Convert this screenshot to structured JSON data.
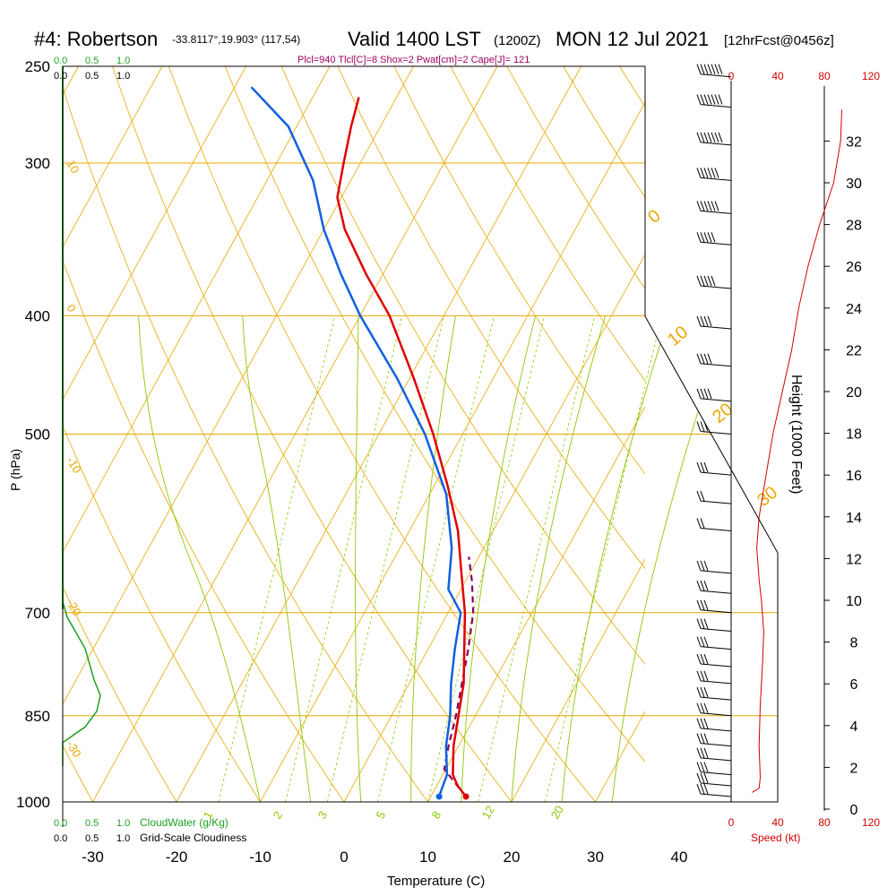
{
  "header": {
    "title": "#4: Robertson",
    "location": "-33.8117°,19.903° (117,54)",
    "valid": "Valid 1400 LST",
    "utc": "(1200Z)",
    "date": "MON 12 Jul 2021",
    "forecast": "[12hrFcst@0456z]",
    "params": "Plcl=940 Tlcl[C]=8 Shox=2 Pwat[cm]=2 Cape[J]= 121"
  },
  "labels": {
    "ylabel": "P (hPa)",
    "xlabel": "Temperature (C)",
    "height_label": "Height (1000 Feet)",
    "speed_label": "Speed (kt)",
    "cloudwater_label": "CloudWater (g/Kg)",
    "cloudiness_label": "Grid-Scale Cloudiness"
  },
  "cloud_scale": {
    "green_ticks": [
      "0.0",
      "0.5",
      "1.0"
    ],
    "black_ticks": [
      "0.0",
      "0.5",
      "1.0"
    ]
  },
  "colors": {
    "isotherm": "#e8a800",
    "adiabat": "#e8a800",
    "moist_adiabat": "#8cc800",
    "mixing_ratio": "#8cc800",
    "temperature": "#e00000",
    "dewpoint": "#1060e0",
    "parcel": "#800060",
    "cloud": "#20a020",
    "speed": "#d00000",
    "header_params": "#a00060"
  },
  "chart_data": {
    "type": "skew-t",
    "xlabel": "Temperature (C)",
    "ylabel": "P (hPa)",
    "xlim": [
      -35,
      45
    ],
    "pressure_ticks": [
      250,
      300,
      400,
      500,
      700,
      850,
      1000
    ],
    "temperature_ticks": [
      -30,
      -20,
      -10,
      0,
      10,
      20,
      30,
      40
    ],
    "isotherm_labels": [
      {
        "label": "10",
        "t": 10
      },
      {
        "label": "0",
        "t": 0
      },
      {
        "label": "-10",
        "t": -10
      },
      {
        "label": "-20",
        "t": -20
      },
      {
        "label": "-30",
        "t": -30
      }
    ],
    "adiabat_labels": [
      "0",
      "10",
      "20",
      "30"
    ],
    "mixing_ratio_labels": [
      "1",
      "2",
      "3",
      "5",
      "8",
      "12",
      "20"
    ],
    "temperature": [
      {
        "p": 990,
        "t": 14.2
      },
      {
        "p": 970,
        "t": 12.5
      },
      {
        "p": 950,
        "t": 11.2
      },
      {
        "p": 900,
        "t": 9.4
      },
      {
        "p": 850,
        "t": 8.0
      },
      {
        "p": 800,
        "t": 6.5
      },
      {
        "p": 700,
        "t": 2.0
      },
      {
        "p": 650,
        "t": -1.0
      },
      {
        "p": 600,
        "t": -4.2
      },
      {
        "p": 550,
        "t": -8.5
      },
      {
        "p": 500,
        "t": -13.5
      },
      {
        "p": 450,
        "t": -19.5
      },
      {
        "p": 400,
        "t": -26.5
      },
      {
        "p": 370,
        "t": -32.0
      },
      {
        "p": 340,
        "t": -37.5
      },
      {
        "p": 320,
        "t": -40.5
      },
      {
        "p": 300,
        "t": -42.0
      },
      {
        "p": 280,
        "t": -43.5
      },
      {
        "p": 265,
        "t": -44.5
      }
    ],
    "dewpoint": [
      {
        "p": 990,
        "t": 11.0
      },
      {
        "p": 975,
        "t": 10.8
      },
      {
        "p": 950,
        "t": 10.5
      },
      {
        "p": 900,
        "t": 8.5
      },
      {
        "p": 850,
        "t": 7.0
      },
      {
        "p": 800,
        "t": 5.0
      },
      {
        "p": 750,
        "t": 3.2
      },
      {
        "p": 700,
        "t": 1.5
      },
      {
        "p": 670,
        "t": -1.5
      },
      {
        "p": 620,
        "t": -3.8
      },
      {
        "p": 560,
        "t": -8.0
      },
      {
        "p": 500,
        "t": -14.5
      },
      {
        "p": 450,
        "t": -21.5
      },
      {
        "p": 400,
        "t": -30.0
      },
      {
        "p": 370,
        "t": -35.0
      },
      {
        "p": 340,
        "t": -40.0
      },
      {
        "p": 310,
        "t": -44.5
      },
      {
        "p": 280,
        "t": -51.0
      },
      {
        "p": 260,
        "t": -58.0
      }
    ],
    "parcel": [
      {
        "p": 990,
        "t": 14.2
      },
      {
        "p": 940,
        "t": 9.8
      },
      {
        "p": 900,
        "t": 8.8
      },
      {
        "p": 850,
        "t": 7.7
      },
      {
        "p": 800,
        "t": 6.3
      },
      {
        "p": 750,
        "t": 4.8
      },
      {
        "p": 700,
        "t": 3.0
      },
      {
        "p": 660,
        "t": 0.8
      },
      {
        "p": 630,
        "t": -1.2
      }
    ],
    "cloud_water": [
      {
        "h": 0,
        "v": 0.0
      },
      {
        "h": 1.5,
        "v": 0.0
      },
      {
        "h": 2.5,
        "v": 0.25
      },
      {
        "h": 3.5,
        "v": 0.38
      },
      {
        "h": 4.5,
        "v": 0.42
      },
      {
        "h": 5.5,
        "v": 0.35
      },
      {
        "h": 7.5,
        "v": 0.25
      },
      {
        "h": 9.5,
        "v": 0.05
      },
      {
        "h": 10.5,
        "v": 0.0
      }
    ],
    "height_axis": {
      "label": "Height (1000 Feet)",
      "ticks": [
        0,
        2,
        4,
        6,
        8,
        10,
        12,
        14,
        16,
        18,
        20,
        22,
        24,
        26,
        28,
        30,
        32
      ]
    },
    "speed_axis": {
      "label": "Speed (kt)",
      "ticks": [
        0,
        40,
        80,
        120
      ]
    },
    "wind_speed_profile": [
      {
        "h": 0.8,
        "s": 18
      },
      {
        "h": 1.0,
        "s": 24
      },
      {
        "h": 1.5,
        "s": 25
      },
      {
        "h": 3,
        "s": 24
      },
      {
        "h": 5,
        "s": 25
      },
      {
        "h": 7,
        "s": 27
      },
      {
        "h": 8.5,
        "s": 28
      },
      {
        "h": 10,
        "s": 26
      },
      {
        "h": 11,
        "s": 24
      },
      {
        "h": 12.5,
        "s": 22
      },
      {
        "h": 14,
        "s": 24
      },
      {
        "h": 16,
        "s": 30
      },
      {
        "h": 18,
        "s": 36
      },
      {
        "h": 20,
        "s": 44
      },
      {
        "h": 22,
        "s": 52
      },
      {
        "h": 24,
        "s": 58
      },
      {
        "h": 26,
        "s": 66
      },
      {
        "h": 28,
        "s": 76
      },
      {
        "h": 30,
        "s": 88
      },
      {
        "h": 32,
        "s": 94
      },
      {
        "h": 33.5,
        "s": 95
      }
    ],
    "wind_barbs": [
      {
        "p": 990,
        "kt": 25
      },
      {
        "p": 970,
        "kt": 25
      },
      {
        "p": 950,
        "kt": 25
      },
      {
        "p": 925,
        "kt": 25
      },
      {
        "p": 900,
        "kt": 25
      },
      {
        "p": 875,
        "kt": 25
      },
      {
        "p": 850,
        "kt": 25
      },
      {
        "p": 825,
        "kt": 25
      },
      {
        "p": 800,
        "kt": 25
      },
      {
        "p": 775,
        "kt": 25
      },
      {
        "p": 750,
        "kt": 25
      },
      {
        "p": 725,
        "kt": 25
      },
      {
        "p": 700,
        "kt": 25
      },
      {
        "p": 675,
        "kt": 25
      },
      {
        "p": 650,
        "kt": 25
      },
      {
        "p": 600,
        "kt": 20
      },
      {
        "p": 570,
        "kt": 20
      },
      {
        "p": 540,
        "kt": 25
      },
      {
        "p": 500,
        "kt": 30
      },
      {
        "p": 470,
        "kt": 35
      },
      {
        "p": 440,
        "kt": 35
      },
      {
        "p": 410,
        "kt": 40
      },
      {
        "p": 380,
        "kt": 45
      },
      {
        "p": 350,
        "kt": 50
      },
      {
        "p": 330,
        "kt": 55
      },
      {
        "p": 310,
        "kt": 60
      },
      {
        "p": 290,
        "kt": 65
      },
      {
        "p": 270,
        "kt": 70
      },
      {
        "p": 255,
        "kt": 70
      }
    ]
  }
}
